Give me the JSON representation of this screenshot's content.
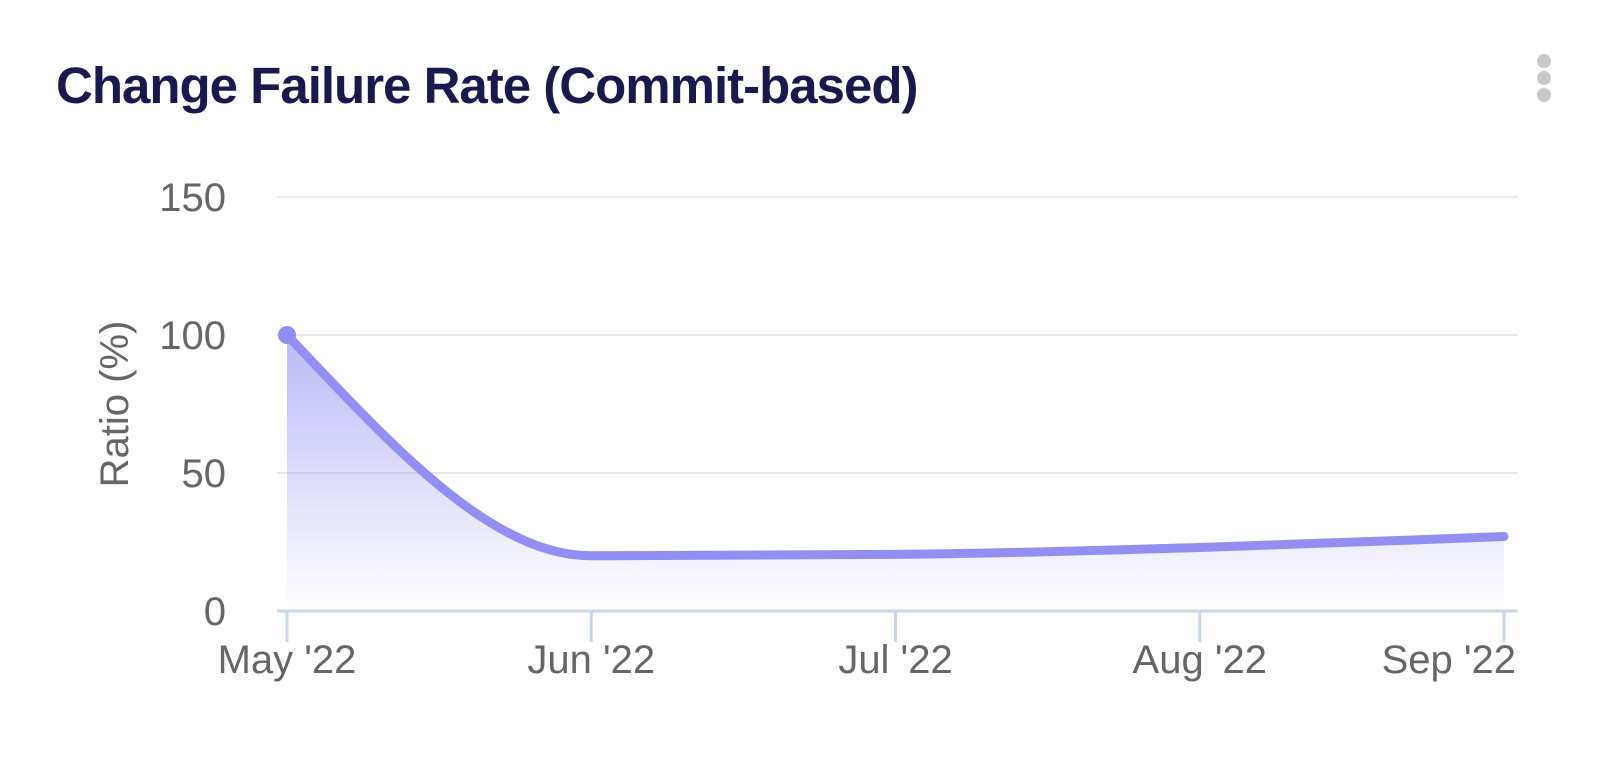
{
  "header": {
    "title": "Change Failure Rate (Commit-based)"
  },
  "colors": {
    "title_text": "#1a194d",
    "axis_label": "#666666",
    "axis_line": "#ccd6eb",
    "gridline": "#e8e8e8",
    "series_line": "#918ff2",
    "area_fill_top": "rgba(145,143,242,0.62)",
    "area_fill_bottom": "rgba(145,143,242,0)",
    "menu_dots": "#c8c8c8",
    "background": "#ffffff"
  },
  "chart_data": {
    "type": "area",
    "title": "Change Failure Rate (Commit-based)",
    "xlabel": "",
    "ylabel": "Ratio (%)",
    "categories": [
      "May '22",
      "Jun '22",
      "Jul '22",
      "Aug '22",
      "Sep '22"
    ],
    "series": [
      {
        "name": "Change Failure Rate",
        "values": [
          100,
          20,
          20.5,
          23,
          27
        ]
      }
    ],
    "y_ticks": [
      0,
      50,
      100,
      150
    ],
    "ylim": [
      0,
      150
    ],
    "grid": "horizontal-only",
    "legend": "none",
    "line_style": "smooth-spline",
    "first_point_marker": true
  }
}
